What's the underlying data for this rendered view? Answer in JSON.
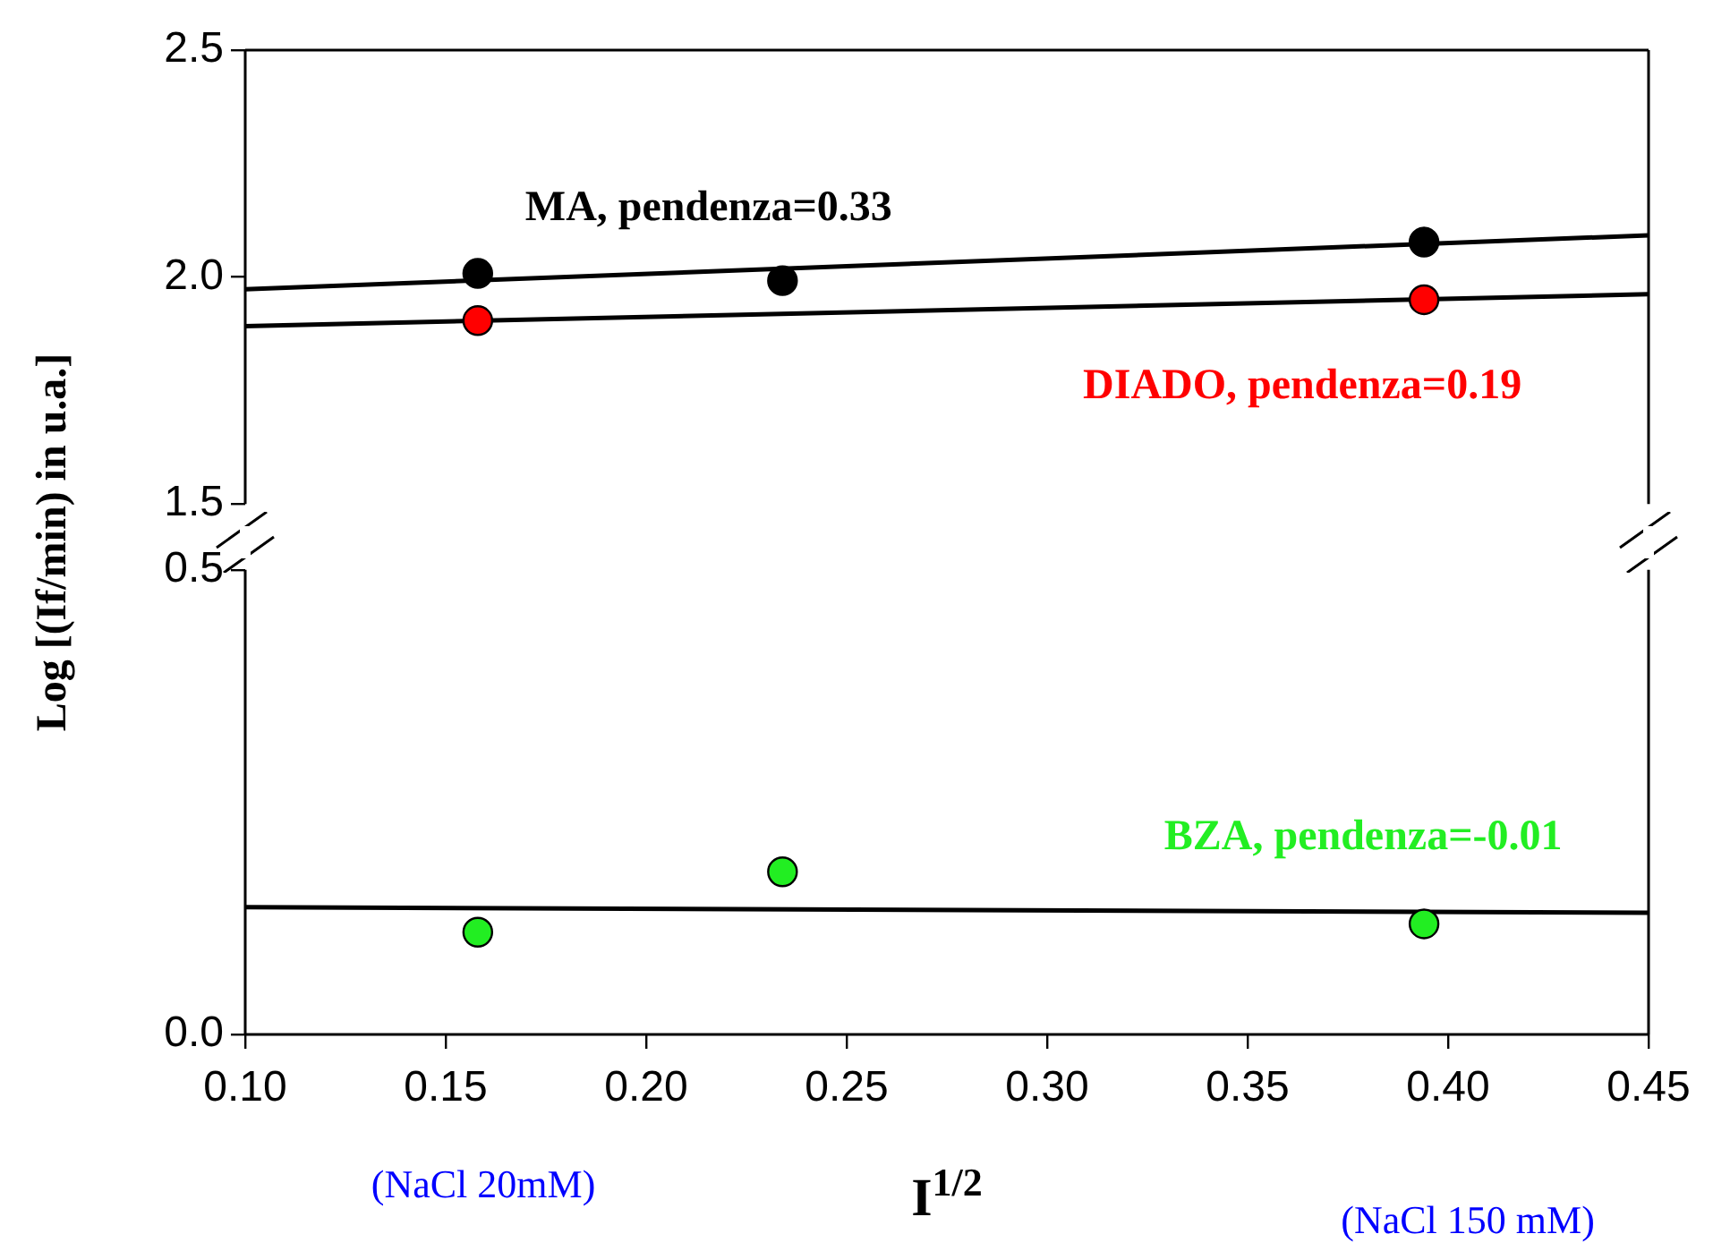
{
  "chart_data": [
    {
      "type": "scatter",
      "ylabel": "Log [(If/min) in u.a.]",
      "xlim": [
        0.1,
        0.45
      ],
      "ylim": [
        1.5,
        2.5
      ],
      "yticks": [
        1.5,
        {
          "value": 2,
          "label": "2.0"
        },
        2.5
      ],
      "tick_labels": "y",
      "marker": "circle",
      "series": [
        {
          "name": "MA, pendenza=0.33",
          "color": "#000000",
          "x": [
            0.158,
            0.234,
            0.394
          ],
          "values": [
            2.008,
            1.992,
            2.077
          ]
        },
        {
          "type": "line",
          "marker": "none",
          "color": "#000000",
          "x": [
            0.1,
            0.45
          ],
          "values": [
            1.973,
            2.092
          ]
        },
        {
          "name": "DIADO, pendenza=0.19",
          "color": "#ff0000",
          "x": [
            0.158,
            0.394
          ],
          "values": [
            1.904,
            1.95
          ]
        },
        {
          "type": "line",
          "marker": "none",
          "color": "#000000",
          "x": [
            0.1,
            0.45
          ],
          "values": [
            1.892,
            1.962
          ]
        }
      ]
    },
    {
      "type": "scatter",
      "xlabel": "I$^{1/2}$",
      "xlim": [
        0.1,
        0.45
      ],
      "xticks": [
        {
          "value": 0.1,
          "label": "0.10"
        },
        {
          "value": 0.15,
          "label": "0.15"
        },
        {
          "value": 0.2,
          "label": "0.20"
        },
        {
          "value": 0.25,
          "label": "0.25"
        },
        {
          "value": 0.3,
          "label": "0.30"
        },
        {
          "value": 0.35,
          "label": "0.35"
        },
        {
          "value": 0.4,
          "label": "0.40"
        },
        {
          "value": 0.45,
          "label": "0.45"
        }
      ],
      "ylim": [
        0,
        0.5
      ],
      "yticks": [
        {
          "value": 0,
          "label": "0.0"
        },
        0.5
      ],
      "marker": "circle",
      "series": [
        {
          "name": "BZA, pendenza=-0.01",
          "color": "#22ee22",
          "x": [
            0.158,
            0.234,
            0.394
          ],
          "values": [
            0.11,
            0.175,
            0.119
          ]
        },
        {
          "type": "line",
          "marker": "none",
          "color": "#000000",
          "x": [
            0.1,
            0.45
          ],
          "values": [
            0.137,
            0.131
          ]
        }
      ],
      "annotations": [
        "(NaCl 20mM)",
        "(NaCl 150 mM)"
      ]
    }
  ]
}
